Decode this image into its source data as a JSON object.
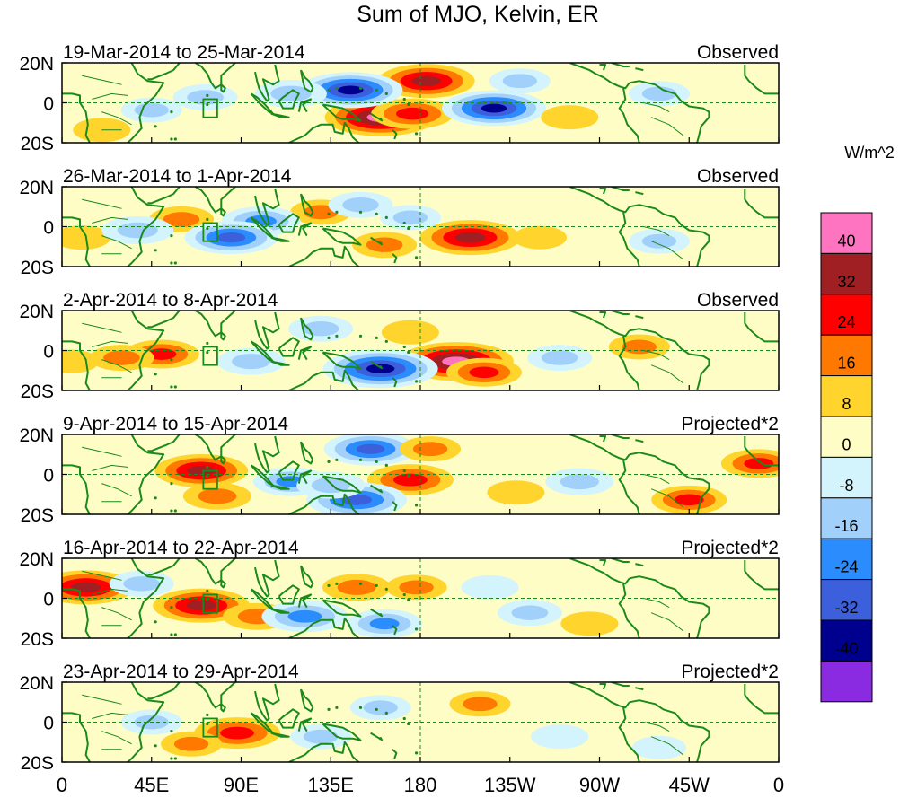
{
  "chart_data": {
    "type": "heatmap",
    "title": "Sum of MJO, Kelvin, ER",
    "colorbar": {
      "unit": "W/m^2",
      "tick_labels": [
        "40",
        "32",
        "24",
        "16",
        "8",
        "0",
        "-8",
        "-16",
        "-24",
        "-32",
        "-40"
      ],
      "colors": [
        "#ff74c0",
        "#a01f23",
        "#ff0000",
        "#ff7800",
        "#ffd42c",
        "#fefdc6",
        "#d3f3fd",
        "#a1d0fb",
        "#2a8cfd",
        "#3c5fdc",
        "#00008e",
        "#8a2be2"
      ]
    },
    "x_ticks": [
      "0",
      "45E",
      "90E",
      "135E",
      "180",
      "135W",
      "90W",
      "45W",
      "0"
    ],
    "y_ticks": [
      "20N",
      "0",
      "20S"
    ],
    "panels": [
      {
        "period": "19-Mar-2014 to 25-Mar-2014",
        "kind": "Observed",
        "anomalies": [
          {
            "lon": 183,
            "lat": 12,
            "v": 32
          },
          {
            "lon": 160,
            "lat": -8,
            "v": 40
          },
          {
            "lon": 176,
            "lat": -6,
            "v": 24
          },
          {
            "lon": 145,
            "lat": 7,
            "v": -36
          },
          {
            "lon": 217,
            "lat": -3,
            "v": -36
          },
          {
            "lon": 115,
            "lat": 5,
            "v": -18
          },
          {
            "lon": 230,
            "lat": 12,
            "v": -12
          },
          {
            "lon": 72,
            "lat": 3,
            "v": -14
          },
          {
            "lon": 300,
            "lat": 5,
            "v": -12
          },
          {
            "lon": 45,
            "lat": -4,
            "v": -12
          },
          {
            "lon": 20,
            "lat": -15,
            "v": 10
          },
          {
            "lon": 255,
            "lat": -8,
            "v": 10
          }
        ]
      },
      {
        "period": "26-Mar-2014 to 1-Apr-2014",
        "kind": "Observed",
        "anomalies": [
          {
            "lon": 205,
            "lat": -6,
            "v": 34
          },
          {
            "lon": 162,
            "lat": -10,
            "v": 14
          },
          {
            "lon": 60,
            "lat": 4,
            "v": 14
          },
          {
            "lon": 130,
            "lat": 8,
            "v": 12
          },
          {
            "lon": 10,
            "lat": -6,
            "v": 10
          },
          {
            "lon": 240,
            "lat": -6,
            "v": 8
          },
          {
            "lon": 100,
            "lat": 3,
            "v": -22
          },
          {
            "lon": 85,
            "lat": -6,
            "v": -30
          },
          {
            "lon": 38,
            "lat": -2,
            "v": -18
          },
          {
            "lon": 150,
            "lat": 12,
            "v": -14
          },
          {
            "lon": 175,
            "lat": 5,
            "v": -12
          },
          {
            "lon": 300,
            "lat": -8,
            "v": -12
          }
        ]
      },
      {
        "period": "2-Apr-2014 to 8-Apr-2014",
        "kind": "Observed",
        "anomalies": [
          {
            "lon": 198,
            "lat": -6,
            "v": 42
          },
          {
            "lon": 212,
            "lat": -12,
            "v": 20
          },
          {
            "lon": 160,
            "lat": -10,
            "v": -42
          },
          {
            "lon": 50,
            "lat": -2,
            "v": 20
          },
          {
            "lon": 30,
            "lat": -4,
            "v": 14
          },
          {
            "lon": 175,
            "lat": 10,
            "v": 10
          },
          {
            "lon": 95,
            "lat": -6,
            "v": -16
          },
          {
            "lon": 130,
            "lat": 12,
            "v": -14
          },
          {
            "lon": 250,
            "lat": -4,
            "v": -14
          },
          {
            "lon": 290,
            "lat": 2,
            "v": 12
          },
          {
            "lon": 5,
            "lat": -6,
            "v": 8
          }
        ]
      },
      {
        "period": "9-Apr-2014 to 15-Apr-2014",
        "kind": "Projected*2",
        "anomalies": [
          {
            "lon": 70,
            "lat": 2,
            "v": 30
          },
          {
            "lon": 175,
            "lat": -3,
            "v": 26
          },
          {
            "lon": 78,
            "lat": -12,
            "v": 16
          },
          {
            "lon": 148,
            "lat": -14,
            "v": -34
          },
          {
            "lon": 155,
            "lat": 14,
            "v": -30
          },
          {
            "lon": 115,
            "lat": -4,
            "v": -20
          },
          {
            "lon": 135,
            "lat": -6,
            "v": -16
          },
          {
            "lon": 260,
            "lat": -4,
            "v": -16
          },
          {
            "lon": 315,
            "lat": -14,
            "v": 20
          },
          {
            "lon": 350,
            "lat": 6,
            "v": 20
          },
          {
            "lon": 185,
            "lat": 14,
            "v": 12
          },
          {
            "lon": 228,
            "lat": -10,
            "v": 10
          }
        ]
      },
      {
        "period": "16-Apr-2014 to 22-Apr-2014",
        "kind": "Projected*2",
        "anomalies": [
          {
            "lon": 70,
            "lat": -4,
            "v": 32
          },
          {
            "lon": 12,
            "lat": 6,
            "v": 32
          },
          {
            "lon": 98,
            "lat": -10,
            "v": 16
          },
          {
            "lon": 148,
            "lat": 6,
            "v": 16
          },
          {
            "lon": 178,
            "lat": 6,
            "v": 12
          },
          {
            "lon": 122,
            "lat": -10,
            "v": -26
          },
          {
            "lon": 162,
            "lat": -14,
            "v": -20
          },
          {
            "lon": 40,
            "lat": 8,
            "v": -14
          },
          {
            "lon": 235,
            "lat": -8,
            "v": -14
          },
          {
            "lon": 265,
            "lat": -14,
            "v": 10
          },
          {
            "lon": 215,
            "lat": 6,
            "v": -10
          }
        ]
      },
      {
        "period": "23-Apr-2014 to 29-Apr-2014",
        "kind": "Projected*2",
        "anomalies": [
          {
            "lon": 88,
            "lat": -6,
            "v": 26
          },
          {
            "lon": 65,
            "lat": -12,
            "v": 12
          },
          {
            "lon": 210,
            "lat": 10,
            "v": 12
          },
          {
            "lon": 130,
            "lat": -8,
            "v": -12
          },
          {
            "lon": 160,
            "lat": 8,
            "v": -12
          },
          {
            "lon": 45,
            "lat": 0,
            "v": -12
          },
          {
            "lon": 250,
            "lat": -8,
            "v": -10
          },
          {
            "lon": 300,
            "lat": -14,
            "v": -8
          }
        ]
      }
    ]
  }
}
